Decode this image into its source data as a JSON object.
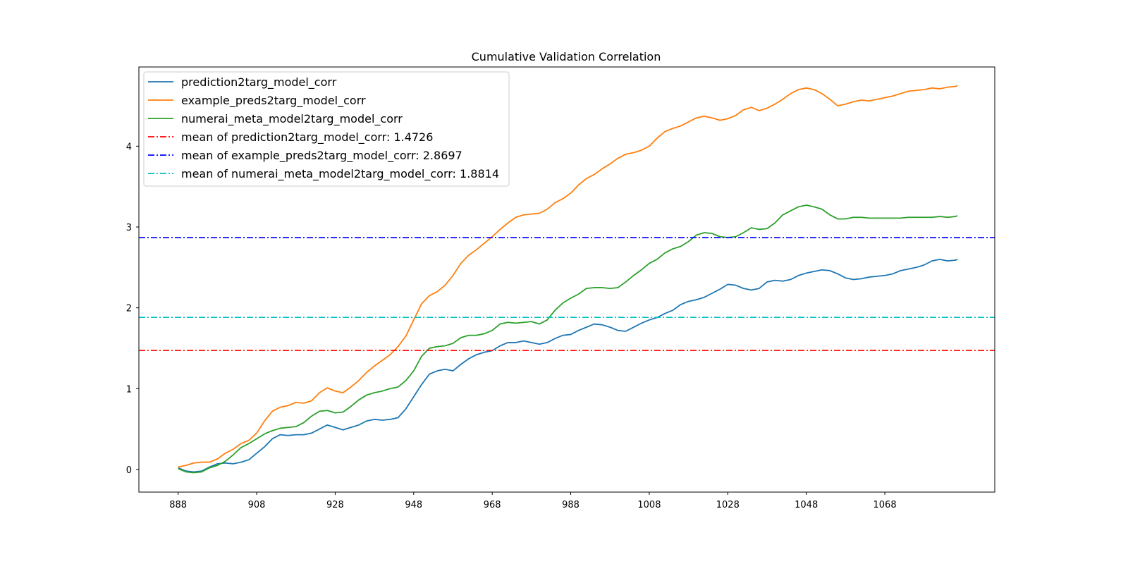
{
  "chart_data": {
    "type": "line",
    "title": "Cumulative Validation Correlation",
    "xlabel": "",
    "ylabel": "",
    "xlim": [
      878,
      1096
    ],
    "ylim": [
      -0.28,
      4.98
    ],
    "xticks": [
      888,
      908,
      928,
      948,
      968,
      988,
      1008,
      1028,
      1048,
      1068
    ],
    "yticks": [
      0,
      1,
      2,
      3,
      4
    ],
    "grid": false,
    "legend_position": "upper left",
    "series": [
      {
        "name": "prediction2targ_model_corr",
        "color": "#1f77b4",
        "style": "solid",
        "x": [
          888,
          890,
          892,
          894,
          896,
          898,
          900,
          902,
          904,
          906,
          908,
          910,
          912,
          914,
          916,
          918,
          920,
          922,
          924,
          926,
          928,
          930,
          932,
          934,
          936,
          938,
          940,
          942,
          944,
          946,
          948,
          950,
          952,
          954,
          956,
          958,
          960,
          962,
          964,
          966,
          968,
          970,
          972,
          974,
          976,
          978,
          980,
          982,
          984,
          986,
          988,
          990,
          992,
          994,
          996,
          998,
          1000,
          1002,
          1004,
          1006,
          1008,
          1010,
          1012,
          1014,
          1016,
          1018,
          1020,
          1022,
          1024,
          1026,
          1028,
          1030,
          1032,
          1034,
          1036,
          1038,
          1040,
          1042,
          1044,
          1046,
          1048,
          1050,
          1052,
          1054,
          1056,
          1058,
          1060,
          1062,
          1064,
          1066,
          1068,
          1070,
          1072,
          1074,
          1076,
          1078,
          1080,
          1082,
          1084,
          1086,
          1086.5
        ],
        "values": [
          0.02,
          -0.02,
          -0.03,
          -0.02,
          0.03,
          0.07,
          0.08,
          0.07,
          0.09,
          0.12,
          0.2,
          0.28,
          0.38,
          0.43,
          0.42,
          0.43,
          0.43,
          0.45,
          0.5,
          0.55,
          0.52,
          0.49,
          0.52,
          0.55,
          0.6,
          0.62,
          0.61,
          0.62,
          0.64,
          0.75,
          0.9,
          1.05,
          1.18,
          1.22,
          1.24,
          1.22,
          1.3,
          1.37,
          1.42,
          1.45,
          1.47,
          1.53,
          1.57,
          1.57,
          1.59,
          1.57,
          1.55,
          1.57,
          1.62,
          1.66,
          1.67,
          1.72,
          1.76,
          1.8,
          1.79,
          1.76,
          1.72,
          1.71,
          1.76,
          1.81,
          1.85,
          1.88,
          1.93,
          1.97,
          2.04,
          2.08,
          2.1,
          2.13,
          2.18,
          2.23,
          2.29,
          2.28,
          2.24,
          2.22,
          2.24,
          2.32,
          2.34,
          2.33,
          2.35,
          2.4,
          2.43,
          2.45,
          2.47,
          2.46,
          2.42,
          2.37,
          2.35,
          2.36,
          2.38,
          2.39,
          2.4,
          2.42,
          2.46,
          2.48,
          2.5,
          2.53,
          2.58,
          2.6,
          2.58,
          2.59,
          2.6
        ]
      },
      {
        "name": "example_preds2targ_model_corr",
        "color": "#ff7f0e",
        "style": "solid",
        "x": [
          888,
          890,
          892,
          894,
          896,
          898,
          900,
          902,
          904,
          906,
          908,
          910,
          912,
          914,
          916,
          918,
          920,
          922,
          924,
          926,
          928,
          930,
          932,
          934,
          936,
          938,
          940,
          942,
          944,
          946,
          948,
          950,
          952,
          954,
          956,
          958,
          960,
          962,
          964,
          966,
          968,
          970,
          972,
          974,
          976,
          978,
          980,
          982,
          984,
          986,
          988,
          990,
          992,
          994,
          996,
          998,
          1000,
          1002,
          1004,
          1006,
          1008,
          1010,
          1012,
          1014,
          1016,
          1018,
          1020,
          1022,
          1024,
          1026,
          1028,
          1030,
          1032,
          1034,
          1036,
          1038,
          1040,
          1042,
          1044,
          1046,
          1048,
          1050,
          1052,
          1054,
          1056,
          1058,
          1060,
          1062,
          1064,
          1066,
          1068,
          1070,
          1072,
          1074,
          1076,
          1078,
          1080,
          1082,
          1084,
          1086,
          1086.5
        ],
        "values": [
          0.03,
          0.05,
          0.08,
          0.09,
          0.09,
          0.13,
          0.2,
          0.25,
          0.32,
          0.36,
          0.45,
          0.6,
          0.72,
          0.77,
          0.79,
          0.83,
          0.82,
          0.85,
          0.95,
          1.01,
          0.97,
          0.95,
          1.02,
          1.1,
          1.2,
          1.28,
          1.35,
          1.42,
          1.52,
          1.65,
          1.85,
          2.05,
          2.15,
          2.2,
          2.28,
          2.4,
          2.55,
          2.65,
          2.72,
          2.8,
          2.88,
          2.97,
          3.05,
          3.12,
          3.15,
          3.16,
          3.17,
          3.22,
          3.3,
          3.35,
          3.42,
          3.52,
          3.6,
          3.65,
          3.72,
          3.78,
          3.85,
          3.9,
          3.92,
          3.95,
          4.0,
          4.1,
          4.18,
          4.22,
          4.25,
          4.3,
          4.35,
          4.37,
          4.35,
          4.32,
          4.34,
          4.38,
          4.45,
          4.48,
          4.44,
          4.47,
          4.52,
          4.58,
          4.65,
          4.7,
          4.72,
          4.7,
          4.65,
          4.58,
          4.5,
          4.52,
          4.55,
          4.57,
          4.56,
          4.58,
          4.6,
          4.62,
          4.65,
          4.68,
          4.69,
          4.7,
          4.72,
          4.71,
          4.73,
          4.74,
          4.75
        ]
      },
      {
        "name": "numerai_meta_model2targ_model_corr",
        "color": "#2ca02c",
        "style": "solid",
        "x": [
          888,
          890,
          892,
          894,
          896,
          898,
          900,
          902,
          904,
          906,
          908,
          910,
          912,
          914,
          916,
          918,
          920,
          922,
          924,
          926,
          928,
          930,
          932,
          934,
          936,
          938,
          940,
          942,
          944,
          946,
          948,
          950,
          952,
          954,
          956,
          958,
          960,
          962,
          964,
          966,
          968,
          970,
          972,
          974,
          976,
          978,
          980,
          982,
          984,
          986,
          988,
          990,
          992,
          994,
          996,
          998,
          1000,
          1002,
          1004,
          1006,
          1008,
          1010,
          1012,
          1014,
          1016,
          1018,
          1020,
          1022,
          1024,
          1026,
          1028,
          1030,
          1032,
          1034,
          1036,
          1038,
          1040,
          1042,
          1044,
          1046,
          1048,
          1050,
          1052,
          1054,
          1056,
          1058,
          1060,
          1062,
          1064,
          1066,
          1068,
          1070,
          1072,
          1074,
          1076,
          1078,
          1080,
          1082,
          1084,
          1086,
          1086.5
        ],
        "values": [
          0.01,
          -0.03,
          -0.04,
          -0.03,
          0.02,
          0.05,
          0.1,
          0.18,
          0.27,
          0.32,
          0.38,
          0.44,
          0.48,
          0.51,
          0.52,
          0.53,
          0.58,
          0.66,
          0.72,
          0.73,
          0.7,
          0.71,
          0.78,
          0.86,
          0.92,
          0.95,
          0.97,
          1.0,
          1.02,
          1.1,
          1.22,
          1.4,
          1.5,
          1.52,
          1.53,
          1.56,
          1.63,
          1.66,
          1.66,
          1.68,
          1.72,
          1.8,
          1.82,
          1.81,
          1.82,
          1.83,
          1.8,
          1.85,
          1.97,
          2.06,
          2.12,
          2.17,
          2.24,
          2.25,
          2.25,
          2.24,
          2.25,
          2.32,
          2.4,
          2.47,
          2.55,
          2.6,
          2.68,
          2.73,
          2.76,
          2.82,
          2.9,
          2.93,
          2.92,
          2.88,
          2.87,
          2.88,
          2.93,
          2.99,
          2.97,
          2.98,
          3.05,
          3.15,
          3.2,
          3.25,
          3.27,
          3.25,
          3.22,
          3.15,
          3.1,
          3.1,
          3.12,
          3.12,
          3.11,
          3.11,
          3.11,
          3.11,
          3.11,
          3.12,
          3.12,
          3.12,
          3.12,
          3.13,
          3.12,
          3.13,
          3.14
        ]
      },
      {
        "name": "mean of prediction2targ_model_corr: 1.4726",
        "color": "#ff0000",
        "style": "dashdot",
        "hline": 1.4726
      },
      {
        "name": "mean of example_preds2targ_model_corr: 2.8697",
        "color": "#0000ff",
        "style": "dashdot",
        "hline": 2.8697
      },
      {
        "name": "mean of numerai_meta_model2targ_model_corr: 1.8814",
        "color": "#00bfbf",
        "style": "dashdot",
        "hline": 1.8814
      }
    ]
  }
}
